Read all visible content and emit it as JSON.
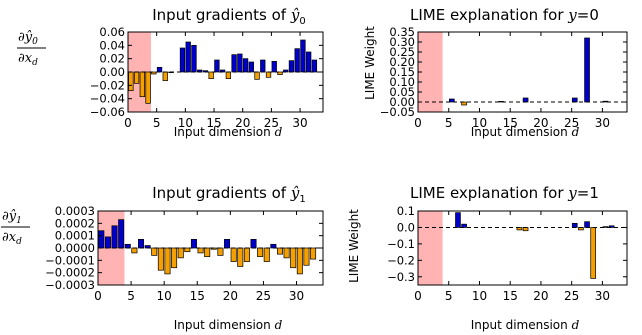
{
  "chart_data": [
    {
      "id": "p1",
      "type": "bar",
      "title": "Input gradients of",
      "title_math": "ŷ",
      "title_sub": "0",
      "xlabel": "Input dimension",
      "xlabel_math": "d",
      "ylabel": {
        "num_math": "∂ŷ",
        "num_sub": "0",
        "den_math": "∂x",
        "den_sub": "d"
      },
      "xlim": [
        0,
        34
      ],
      "ylim": [
        -0.06,
        0.06
      ],
      "xticks": [
        0,
        5,
        10,
        15,
        20,
        25,
        30
      ],
      "yticks": [
        0.06,
        0.04,
        0.02,
        0.0,
        -0.02,
        -0.04,
        -0.06
      ],
      "ytick_labels": [
        "0.06",
        "0.04",
        "0.02",
        "0.00",
        "−0.02",
        "−0.04",
        "−0.06"
      ],
      "shade": [
        0,
        4
      ],
      "zero_line": true,
      "grid": false,
      "values": [
        -0.028,
        -0.017,
        -0.037,
        -0.047,
        -0.003,
        0.007,
        -0.013,
        -0.001,
        0.0,
        0.036,
        0.045,
        0.04,
        0.003,
        0.002,
        -0.01,
        0.018,
        0.003,
        -0.01,
        0.026,
        0.027,
        0.02,
        0.015,
        -0.011,
        0.018,
        -0.008,
        0.016,
        -0.004,
        0.003,
        0.017,
        0.035,
        0.048,
        0.03,
        0.018
      ]
    },
    {
      "id": "p2",
      "type": "bar",
      "title": "LIME explanation for",
      "title_math": "y",
      "title_eq": "=0",
      "xlabel": "Input dimension",
      "xlabel_math": "d",
      "ylabel_text": "LIME Weight",
      "xlim": [
        0,
        34
      ],
      "ylim": [
        -0.05,
        0.35
      ],
      "xticks": [
        0,
        5,
        10,
        15,
        20,
        25,
        30
      ],
      "yticks": [
        0.35,
        0.3,
        0.25,
        0.2,
        0.15,
        0.1,
        0.05,
        0.0,
        -0.05
      ],
      "ytick_labels": [
        "0.35",
        "0.30",
        "0.25",
        "0.20",
        "0.15",
        "0.10",
        "0.05",
        "0.00",
        "−0.05"
      ],
      "shade": [
        0,
        4
      ],
      "zero_line": true,
      "grid": false,
      "values": [
        0,
        0,
        0,
        0,
        0,
        0.015,
        0,
        -0.015,
        0,
        0,
        0,
        0,
        0,
        0.003,
        0,
        0,
        0,
        0.02,
        0,
        0,
        0,
        0,
        0,
        0,
        0,
        0.02,
        0,
        0.32,
        0,
        0,
        0.004,
        0,
        0
      ]
    },
    {
      "id": "p3",
      "type": "bar",
      "title": "Input gradients of",
      "title_math": "ŷ",
      "title_sub": "1",
      "xlabel": "Input dimension",
      "xlabel_math": "d",
      "ylabel": {
        "num_math": "∂ŷ",
        "num_sub": "1",
        "den_math": "∂x",
        "den_sub": "d"
      },
      "xlim": [
        0,
        34
      ],
      "ylim": [
        -0.0003,
        0.0003
      ],
      "xticks": [
        0,
        5,
        10,
        15,
        20,
        25,
        30
      ],
      "yticks": [
        0.0003,
        0.0002,
        0.0001,
        0.0,
        -0.0001,
        -0.0002,
        -0.0003
      ],
      "ytick_labels": [
        "0.0003",
        "0.0002",
        "0.0001",
        "0.0000",
        "−0.0001",
        "−0.0002",
        "−0.0003"
      ],
      "shade": [
        0,
        4
      ],
      "zero_line": true,
      "grid": false,
      "values": [
        0.00014,
        9e-05,
        0.00018,
        0.00023,
        3e-05,
        -4e-05,
        7e-05,
        2e-05,
        -6e-05,
        -0.00018,
        -0.00021,
        -0.00016,
        -8e-05,
        -3e-05,
        7e-05,
        -4e-05,
        -7e-05,
        -1e-05,
        -6e-05,
        7e-05,
        -0.00011,
        -0.00015,
        -0.00011,
        7e-05,
        -7e-05,
        -0.00011,
        3e-05,
        -5e-05,
        -8e-05,
        -0.00016,
        -0.00021,
        -0.00014,
        -9e-05
      ]
    },
    {
      "id": "p4",
      "type": "bar",
      "title": "LIME explanation for",
      "title_math": "y",
      "title_eq": "=1",
      "xlabel": "Input dimension",
      "xlabel_math": "d",
      "ylabel_text": "LIME Weight",
      "xlim": [
        0,
        34
      ],
      "ylim": [
        -0.35,
        0.1
      ],
      "xticks": [
        0,
        5,
        10,
        15,
        20,
        25,
        30
      ],
      "yticks": [
        0.1,
        0.0,
        -0.1,
        -0.2,
        -0.3
      ],
      "ytick_labels": [
        "0.1",
        "0.0",
        "−0.1",
        "−0.2",
        "−0.3"
      ],
      "shade": [
        0,
        4
      ],
      "zero_line": true,
      "grid": false,
      "values": [
        0,
        0,
        0,
        0,
        0,
        0,
        0.09,
        0.02,
        0,
        0,
        0,
        0,
        0,
        0,
        0,
        0,
        -0.015,
        -0.02,
        0,
        0,
        0,
        0,
        0,
        0,
        0,
        0.025,
        -0.015,
        0.035,
        -0.31,
        0,
        0.005,
        0.01,
        0
      ]
    }
  ],
  "colors": {
    "positive": "#0000cc",
    "negative": "#f5a000",
    "shade": "#ffb3b3",
    "zero_line": "#000000",
    "frame": "#000000"
  }
}
